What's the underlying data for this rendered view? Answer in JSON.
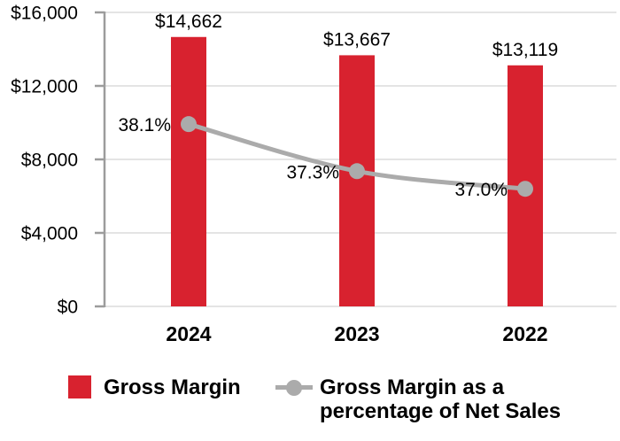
{
  "chart_data": {
    "type": "bar",
    "categories": [
      "2024",
      "2023",
      "2022"
    ],
    "series": [
      {
        "name": "Gross Margin",
        "type": "bar",
        "axis": "primary",
        "color": "#D8222F",
        "values": [
          14662,
          13667,
          13119
        ],
        "data_labels": [
          "$14,662",
          "$13,667",
          "$13,119"
        ]
      },
      {
        "name": "Gross Margin as a percentage of Net Sales",
        "type": "line",
        "axis": "secondary",
        "color": "#ABABAB",
        "values": [
          38.1,
          37.3,
          37.0
        ],
        "data_labels": [
          "38.1%",
          "37.3%",
          "37.0%"
        ]
      }
    ],
    "y_axis": {
      "tick_labels": [
        "$0",
        "$4,000",
        "$8,000",
        "$12,000",
        "$16,000"
      ],
      "tick_values": [
        0,
        4000,
        8000,
        12000,
        16000
      ],
      "ylim": [
        0,
        16000
      ]
    },
    "y2_axis": {
      "ylim": [
        35,
        40
      ],
      "visible": false
    },
    "grid": true,
    "legend_position": "bottom",
    "colors": {
      "grid": "#DCDCDC",
      "axis": "#9C9C9C",
      "text": "#000000"
    }
  },
  "legend": {
    "items": [
      {
        "swatch": "red-square",
        "color": "#D8222F",
        "lines": [
          "Gross Margin"
        ]
      },
      {
        "swatch": "gray-line-dot",
        "color": "#ABABAB",
        "lines": [
          "Gross Margin as a",
          "percentage of Net Sales"
        ]
      }
    ]
  }
}
